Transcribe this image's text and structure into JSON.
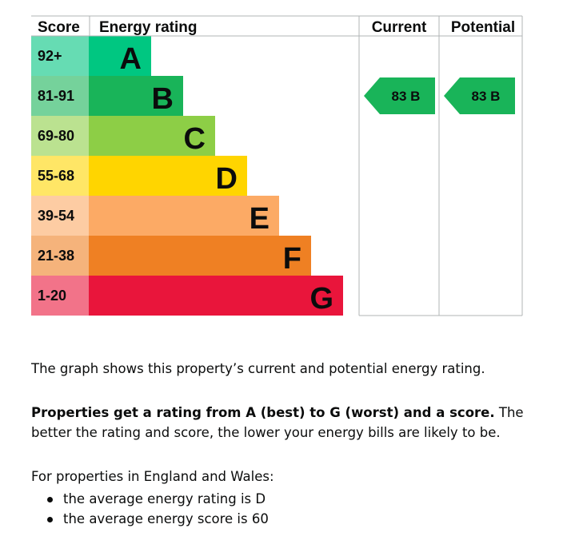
{
  "chart_data": {
    "type": "table",
    "headers": {
      "score": "Score",
      "rating": "Energy rating",
      "current": "Current",
      "potential": "Potential"
    },
    "bands": [
      {
        "score": "92+",
        "letter": "A",
        "color": "#00c781",
        "score_bg": "#66dcb3"
      },
      {
        "score": "81-91",
        "letter": "B",
        "color": "#19b459",
        "score_bg": "#75d29b"
      },
      {
        "score": "69-80",
        "letter": "C",
        "color": "#8dce46",
        "score_bg": "#bbe290"
      },
      {
        "score": "55-68",
        "letter": "D",
        "color": "#ffd500",
        "score_bg": "#ffe666"
      },
      {
        "score": "39-54",
        "letter": "E",
        "color": "#fcaa65",
        "score_bg": "#fdcca3"
      },
      {
        "score": "21-38",
        "letter": "F",
        "color": "#ef8023",
        "score_bg": "#f5b37b"
      },
      {
        "score": "1-20",
        "letter": "G",
        "color": "#e9153b",
        "score_bg": "#f27389"
      }
    ],
    "current": {
      "score": 83,
      "band": "B",
      "label": "83  B",
      "color": "#19b459"
    },
    "potential": {
      "score": 83,
      "band": "B",
      "label": "83  B",
      "color": "#19b459"
    }
  },
  "text": {
    "p1": "The graph shows this property’s current and potential energy rating.",
    "p2_strong": "Properties get a rating from A (best) to G (worst) and a score.",
    "p2_rest": " The better the rating and score, the lower your energy bills are likely to be.",
    "p3": "For properties in England and Wales:",
    "bullets": [
      "the average energy rating is D",
      "the average energy score is 60"
    ]
  }
}
